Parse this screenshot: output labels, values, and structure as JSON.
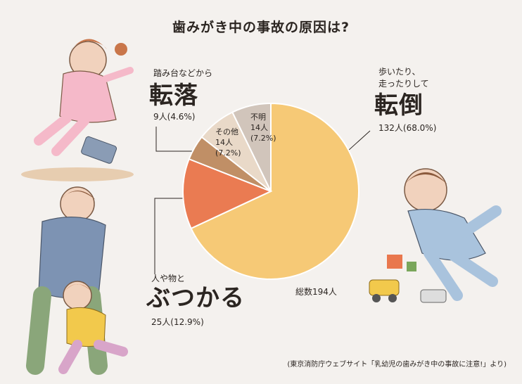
{
  "title": "歯みがき中の事故の原因は?",
  "chart_data": {
    "type": "pie",
    "total_label": "総数194人",
    "slices": [
      {
        "name": "転倒",
        "desc": "歩いたり、\n走ったりして",
        "big": "転倒",
        "count_label": "132人(68.0%)",
        "value": 68.0,
        "color": "#f6c976"
      },
      {
        "name": "ぶつかる",
        "desc": "人や物と",
        "big": "ぶつかる",
        "count_label": "25人(12.9%)",
        "value": 12.9,
        "color": "#ea7b52"
      },
      {
        "name": "転落",
        "desc": "踏み台などから",
        "big": "転落",
        "count_label": "9人(4.6%)",
        "value": 4.6,
        "color": "#c08f66"
      },
      {
        "name": "その他",
        "inner": "その他\n14人\n(7.2%)",
        "value": 7.2,
        "color": "#e9d9c8"
      },
      {
        "name": "不明",
        "inner": "不明\n14人\n(7.2%)",
        "value": 7.2,
        "color": "#d1c5bb"
      }
    ]
  },
  "source_note": "(東京消防庁ウェブサイト「乳幼児の歯みがき中の事故に注意!」より)"
}
